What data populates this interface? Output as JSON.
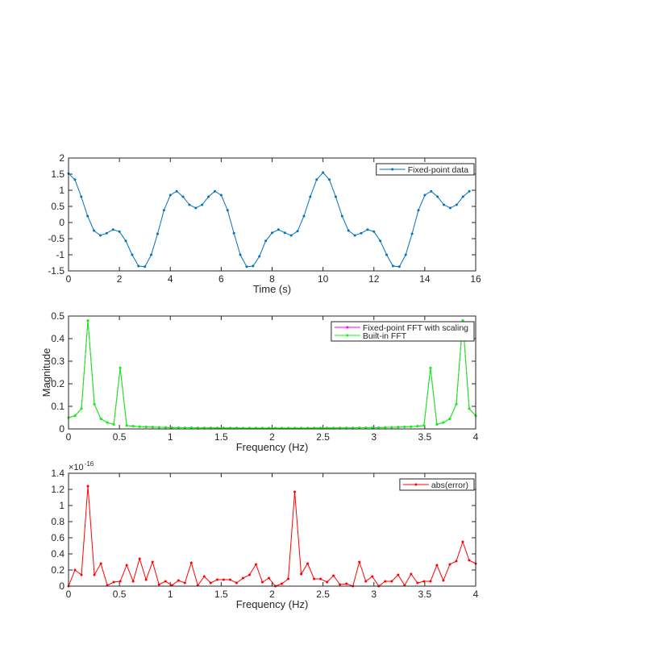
{
  "chart_data": [
    {
      "type": "line",
      "xlabel": "Time (s)",
      "xlim": [
        0,
        16
      ],
      "xticks": [
        0,
        2,
        4,
        6,
        8,
        10,
        12,
        14,
        16
      ],
      "ylim": [
        -1.5,
        2
      ],
      "yticks": [
        -1.5,
        -1,
        -0.5,
        0,
        0.5,
        1,
        1.5,
        2
      ],
      "legend": "northeast",
      "x": [
        0,
        0.25,
        0.5,
        0.75,
        1,
        1.25,
        1.5,
        1.75,
        2,
        2.25,
        2.5,
        2.75,
        3,
        3.25,
        3.5,
        3.75,
        4,
        4.25,
        4.5,
        4.75,
        5,
        5.25,
        5.5,
        5.75,
        6,
        6.25,
        6.5,
        6.75,
        7,
        7.25,
        7.5,
        7.75,
        8,
        8.25,
        8.5,
        8.75,
        9,
        9.25,
        9.5,
        9.75,
        10,
        10.25,
        10.5,
        10.75,
        11,
        11.25,
        11.5,
        11.75,
        12,
        12.25,
        12.5,
        12.75,
        13,
        13.25,
        13.5,
        13.75,
        14,
        14.25,
        14.5,
        14.75,
        15,
        15.25,
        15.5,
        15.75
      ],
      "series": [
        {
          "name": "Fixed-point data",
          "color": "#0072bd",
          "values": [
            1.52,
            1.33,
            0.8,
            0.2,
            -0.25,
            -0.4,
            -0.33,
            -0.22,
            -0.28,
            -0.57,
            -1.0,
            -1.35,
            -1.37,
            -1.0,
            -0.35,
            0.38,
            0.85,
            0.97,
            0.8,
            0.55,
            0.45,
            0.55,
            0.8,
            0.97,
            0.85,
            0.38,
            -0.33,
            -1.0,
            -1.37,
            -1.35,
            -1.05,
            -0.57,
            -0.32,
            -0.22,
            -0.32,
            -0.4,
            -0.27,
            0.2,
            0.8,
            1.33,
            1.55,
            1.33,
            0.8,
            0.2,
            -0.25,
            -0.4,
            -0.33,
            -0.22,
            -0.28,
            -0.57,
            -1.0,
            -1.35,
            -1.37,
            -1.0,
            -0.35,
            0.38,
            0.85,
            0.97,
            0.8,
            0.55,
            0.45,
            0.55,
            0.8,
            0.97
          ]
        }
      ]
    },
    {
      "type": "line",
      "xlabel": "Frequency (Hz)",
      "ylabel": "Magnitude",
      "xlim": [
        0,
        4
      ],
      "xticks": [
        0,
        0.5,
        1,
        1.5,
        2,
        2.5,
        3,
        3.5,
        4
      ],
      "ylim": [
        0,
        0.5
      ],
      "yticks": [
        0,
        0.1,
        0.2,
        0.3,
        0.4,
        0.5
      ],
      "legend": "northeast",
      "x": [
        0,
        0.0635,
        0.127,
        0.1905,
        0.254,
        0.3175,
        0.381,
        0.4444,
        0.5079,
        0.5714,
        0.6349,
        0.6984,
        0.7619,
        0.8254,
        0.8889,
        0.9524,
        1.0159,
        1.0794,
        1.1429,
        1.2063,
        1.2698,
        1.3333,
        1.3968,
        1.4603,
        1.5238,
        1.5873,
        1.6508,
        1.7143,
        1.7778,
        1.8413,
        1.9048,
        1.9683,
        2.0317,
        2.0952,
        2.1587,
        2.2222,
        2.2857,
        2.3492,
        2.4127,
        2.4762,
        2.5397,
        2.6032,
        2.6667,
        2.7302,
        2.7937,
        2.8571,
        2.9206,
        2.9841,
        3.0476,
        3.1111,
        3.1746,
        3.2381,
        3.3016,
        3.3651,
        3.4286,
        3.4921,
        3.5556,
        3.619,
        3.6825,
        3.746,
        3.8095,
        3.873,
        3.9365,
        4
      ],
      "series": [
        {
          "name": "Fixed-point FFT with scaling",
          "color": "#ff00ff",
          "values": [
            0.05,
            0.058,
            0.09,
            0.48,
            0.11,
            0.045,
            0.028,
            0.02,
            0.27,
            0.015,
            0.012,
            0.01,
            0.009,
            0.008,
            0.007,
            0.0065,
            0.006,
            0.006,
            0.0055,
            0.0055,
            0.005,
            0.005,
            0.005,
            0.0045,
            0.0045,
            0.0045,
            0.0045,
            0.004,
            0.004,
            0.004,
            0.004,
            0.004,
            0.004,
            0.004,
            0.004,
            0.004,
            0.004,
            0.004,
            0.0045,
            0.0045,
            0.0045,
            0.0045,
            0.005,
            0.005,
            0.005,
            0.0055,
            0.0055,
            0.006,
            0.006,
            0.0065,
            0.007,
            0.008,
            0.009,
            0.01,
            0.012,
            0.015,
            0.27,
            0.02,
            0.028,
            0.045,
            0.11,
            0.48,
            0.09,
            0.058
          ]
        },
        {
          "name": "Built-in FFT",
          "color": "#00ff00",
          "values": [
            0.05,
            0.058,
            0.09,
            0.48,
            0.11,
            0.045,
            0.028,
            0.02,
            0.27,
            0.015,
            0.012,
            0.01,
            0.009,
            0.008,
            0.007,
            0.0065,
            0.006,
            0.006,
            0.0055,
            0.0055,
            0.005,
            0.005,
            0.005,
            0.0045,
            0.0045,
            0.0045,
            0.0045,
            0.004,
            0.004,
            0.004,
            0.004,
            0.004,
            0.004,
            0.004,
            0.004,
            0.004,
            0.004,
            0.004,
            0.0045,
            0.0045,
            0.0045,
            0.0045,
            0.005,
            0.005,
            0.005,
            0.0055,
            0.0055,
            0.006,
            0.006,
            0.0065,
            0.007,
            0.008,
            0.009,
            0.01,
            0.012,
            0.015,
            0.27,
            0.02,
            0.028,
            0.045,
            0.11,
            0.48,
            0.09,
            0.058
          ]
        }
      ]
    },
    {
      "type": "line",
      "xlabel": "Frequency (Hz)",
      "xlim": [
        0,
        4
      ],
      "xticks": [
        0,
        0.5,
        1,
        1.5,
        2,
        2.5,
        3,
        3.5,
        4
      ],
      "ylim": [
        0,
        1.4
      ],
      "yticks": [
        0,
        0.2,
        0.4,
        0.6,
        0.8,
        1,
        1.2,
        1.4
      ],
      "legend": "northeast",
      "y_multiplier_base": "×10",
      "y_multiplier_exponent": "-16",
      "x": [
        0,
        0.0635,
        0.127,
        0.1905,
        0.254,
        0.3175,
        0.381,
        0.4444,
        0.5079,
        0.5714,
        0.6349,
        0.6984,
        0.7619,
        0.8254,
        0.8889,
        0.9524,
        1.0159,
        1.0794,
        1.1429,
        1.2063,
        1.2698,
        1.3333,
        1.3968,
        1.4603,
        1.5238,
        1.5873,
        1.6508,
        1.7143,
        1.7778,
        1.8413,
        1.9048,
        1.9683,
        2.0317,
        2.0952,
        2.1587,
        2.2222,
        2.2857,
        2.3492,
        2.4127,
        2.4762,
        2.5397,
        2.6032,
        2.6667,
        2.7302,
        2.7937,
        2.8571,
        2.9206,
        2.9841,
        3.0476,
        3.1111,
        3.1746,
        3.2381,
        3.3016,
        3.3651,
        3.4286,
        3.4921,
        3.5556,
        3.619,
        3.6825,
        3.746,
        3.8095,
        3.873,
        3.9365,
        4
      ],
      "series": [
        {
          "name": "abs(error)",
          "color": "#ff0000",
          "values": [
            0,
            0.2,
            0.14,
            1.24,
            0.14,
            0.28,
            0.01,
            0.05,
            0.06,
            0.26,
            0.06,
            0.34,
            0.08,
            0.3,
            0.02,
            0.06,
            0.01,
            0.07,
            0.04,
            0.29,
            0.01,
            0.12,
            0.04,
            0.08,
            0.08,
            0.08,
            0.04,
            0.1,
            0.14,
            0.27,
            0.05,
            0.1,
            0,
            0.03,
            0.09,
            1.17,
            0.15,
            0.28,
            0.09,
            0.09,
            0.05,
            0.13,
            0.02,
            0.03,
            0,
            0.3,
            0.06,
            0.12,
            0,
            0.06,
            0.06,
            0.14,
            0.01,
            0.15,
            0.04,
            0.06,
            0.06,
            0.26,
            0.07,
            0.27,
            0.31,
            0.55,
            0.32,
            0.28
          ]
        }
      ]
    }
  ]
}
